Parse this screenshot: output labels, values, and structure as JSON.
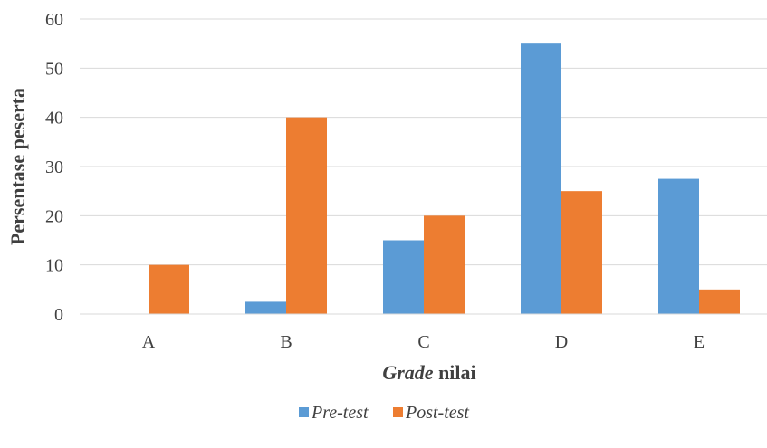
{
  "chart_data": {
    "type": "bar",
    "title": "",
    "xlabel": {
      "italic_part": "Grade",
      "rest": " nilai"
    },
    "ylabel": "Persentase peserta",
    "categories": [
      "A",
      "B",
      "C",
      "D",
      "E"
    ],
    "ylim": [
      0,
      60
    ],
    "yticks": [
      0,
      10,
      20,
      30,
      40,
      50,
      60
    ],
    "grid": true,
    "legend_position": "bottom",
    "series": [
      {
        "name": "Pre-test",
        "color": "#5b9bd5",
        "values": [
          0,
          2.5,
          15,
          55,
          27.5
        ]
      },
      {
        "name": "Post-test",
        "color": "#ed7d31",
        "values": [
          10,
          40,
          20,
          25,
          5
        ]
      }
    ]
  }
}
